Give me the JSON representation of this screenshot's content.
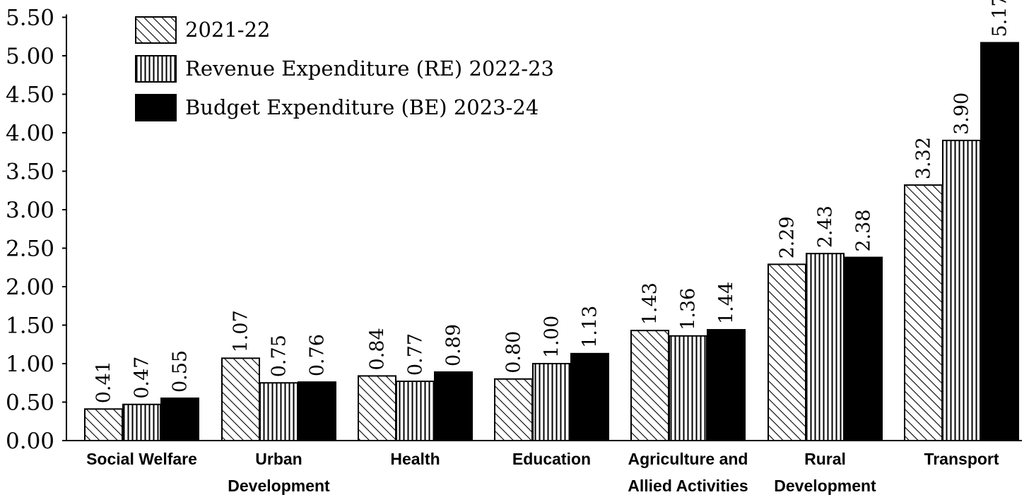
{
  "chart_data": {
    "type": "bar",
    "title": "",
    "xlabel": "",
    "ylabel": "",
    "ylim": [
      0,
      5.5
    ],
    "yticks": [
      "0.00",
      "0.50",
      "1.00",
      "1.50",
      "2.00",
      "2.50",
      "3.00",
      "3.50",
      "4.00",
      "4.50",
      "5.00",
      "5.50"
    ],
    "grid": false,
    "legend_position": "top-left",
    "categories": [
      [
        "Social Welfare"
      ],
      [
        "Urban",
        "Development"
      ],
      [
        "Health"
      ],
      [
        "Education"
      ],
      [
        "Agriculture and",
        "Allied Activities"
      ],
      [
        "Rural",
        "Development"
      ],
      [
        "Transport"
      ]
    ],
    "series": [
      {
        "name": "2021-22",
        "pattern": "diagonal-hatch",
        "values": [
          0.41,
          1.07,
          0.84,
          0.8,
          1.43,
          2.29,
          3.32
        ],
        "labels": [
          "0.41",
          "1.07",
          "0.84",
          "0.80",
          "1.43",
          "2.29",
          "3.32"
        ]
      },
      {
        "name": "Revenue Expenditure (RE) 2022-23",
        "pattern": "vertical-stripes",
        "values": [
          0.47,
          0.75,
          0.77,
          1.0,
          1.36,
          2.43,
          3.9
        ],
        "labels": [
          "0.47",
          "0.75",
          "0.77",
          "1.00",
          "1.36",
          "2.43",
          "3.90"
        ]
      },
      {
        "name": "Budget Expenditure (BE) 2023-24",
        "pattern": "solid-black",
        "values": [
          0.55,
          0.76,
          0.89,
          1.13,
          1.44,
          2.38,
          5.17
        ],
        "labels": [
          "0.55",
          "0.76",
          "0.89",
          "1.13",
          "1.44",
          "2.38",
          "5.17"
        ]
      }
    ]
  }
}
